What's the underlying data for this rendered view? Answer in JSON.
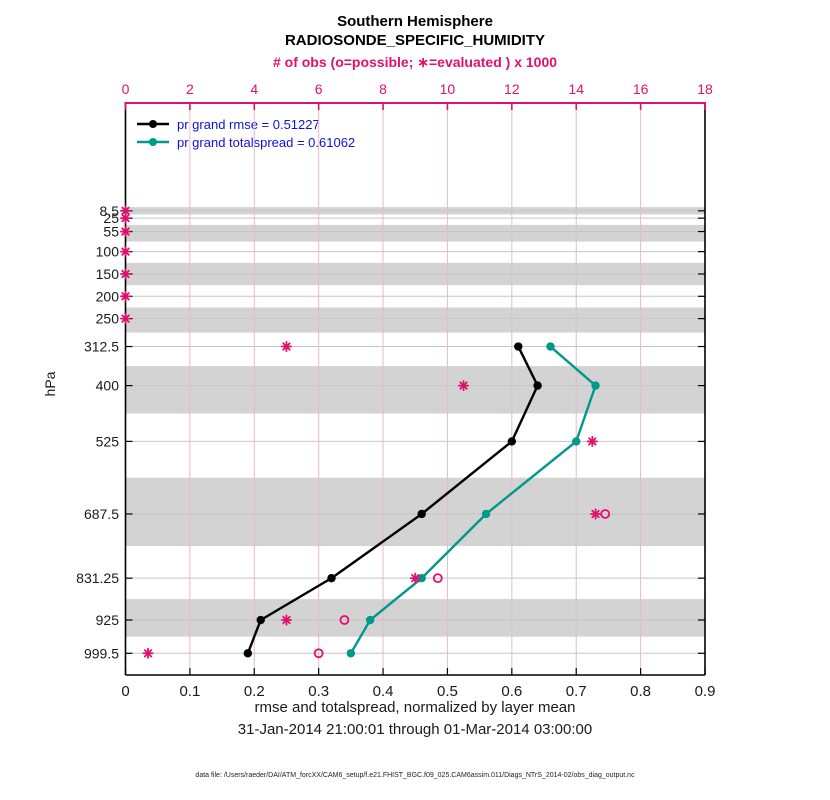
{
  "title": {
    "line1": "Southern Hemisphere",
    "line2": "RADIOSONDE_SPECIFIC_HUMIDITY"
  },
  "top_axis": {
    "label": "# of obs (o=possible; ∗=evaluated ) x 1000",
    "tick_labels": [
      "0",
      "2",
      "4",
      "6",
      "8",
      "10",
      "12",
      "14",
      "16",
      "18"
    ]
  },
  "bottom_axis": {
    "label": "rmse and totalspread, normalized by layer mean",
    "subtitle": "31-Jan-2014 21:00:01 through 01-Mar-2014 03:00:00",
    "tick_labels": [
      "0",
      "0.1",
      "0.2",
      "0.3",
      "0.4",
      "0.5",
      "0.6",
      "0.7",
      "0.8",
      "0.9"
    ]
  },
  "y_axis": {
    "label": "hPa",
    "tick_labels": [
      "8.5",
      "25",
      "55",
      "100",
      "150",
      "200",
      "250",
      "312.5",
      "400",
      "525",
      "687.5",
      "831.25",
      "925",
      "999.5"
    ]
  },
  "legend": {
    "items": [
      {
        "label": "pr grand rmse = 0.51227",
        "color": "#000000"
      },
      {
        "label": "pr grand totalspread = 0.61062",
        "color": "#00988a"
      }
    ]
  },
  "footer": {
    "text": "data file: /Users/raeder/DAI/ATM_forcXX/CAM6_setup/f.e21.FHIST_BGC.f09_025.CAM6assim.011/Diags_NTrS_2014-02/obs_diag_output.nc"
  },
  "colors": {
    "crimson": "#e0106e",
    "grid_vertical": "#e3bccd",
    "grid_horizontal": "#c6c6c6",
    "band_gray": "#d3d3d3",
    "teal": "#00988a",
    "black": "#000000"
  },
  "chart_data": {
    "type": "line",
    "title": "Southern Hemisphere",
    "subtitle": "RADIOSONDE_SPECIFIC_HUMIDITY",
    "xlabel": "rmse and totalspread, normalized by layer mean",
    "xlabel_dates": "31-Jan-2014 21:00:01 through 01-Mar-2014 03:00:00",
    "ylabel": "hPa",
    "top_xlabel": "# of obs (o=possible; ∗=evaluated ) x 1000",
    "x_range": [
      0,
      0.9
    ],
    "x_ticks": [
      0,
      0.1,
      0.2,
      0.3,
      0.4,
      0.5,
      0.6,
      0.7,
      0.8,
      0.9
    ],
    "top_x_range": [
      0,
      18
    ],
    "top_x_ticks": [
      0,
      2,
      4,
      6,
      8,
      10,
      12,
      14,
      16,
      18
    ],
    "levels_hpa": [
      8.5,
      25,
      55,
      100,
      150,
      200,
      250,
      312.5,
      400,
      525,
      687.5,
      831.25,
      925,
      999.5
    ],
    "gray_band_levels": [
      8.5,
      55,
      150,
      250,
      400,
      687.5,
      925
    ],
    "series": [
      {
        "name": "pr grand rmse",
        "legend": "pr grand rmse = 0.51227",
        "stat": 0.51227,
        "color": "#000000",
        "levels": [
          312.5,
          400,
          525,
          687.5,
          831.25,
          925,
          999.5
        ],
        "values": [
          0.61,
          0.64,
          0.6,
          0.46,
          0.32,
          0.21,
          0.19
        ]
      },
      {
        "name": "pr grand totalspread",
        "legend": "pr grand totalspread = 0.61062",
        "stat": 0.61062,
        "color": "#00988a",
        "levels": [
          312.5,
          400,
          525,
          687.5,
          831.25,
          925,
          999.5
        ],
        "values": [
          0.66,
          0.73,
          0.7,
          0.56,
          0.46,
          0.38,
          0.35
        ]
      }
    ],
    "obs_counts_thousands": {
      "levels": [
        8.5,
        25,
        55,
        100,
        150,
        200,
        250,
        312.5,
        400,
        525,
        687.5,
        831.25,
        925,
        999.5
      ],
      "evaluated": [
        0,
        0,
        0,
        0,
        0,
        0,
        0,
        5.0,
        10.5,
        14.5,
        14.6,
        9.0,
        5.0,
        0.7
      ],
      "possible": [
        null,
        null,
        null,
        null,
        null,
        null,
        null,
        null,
        null,
        null,
        14.9,
        9.7,
        6.8,
        6.0
      ]
    }
  }
}
